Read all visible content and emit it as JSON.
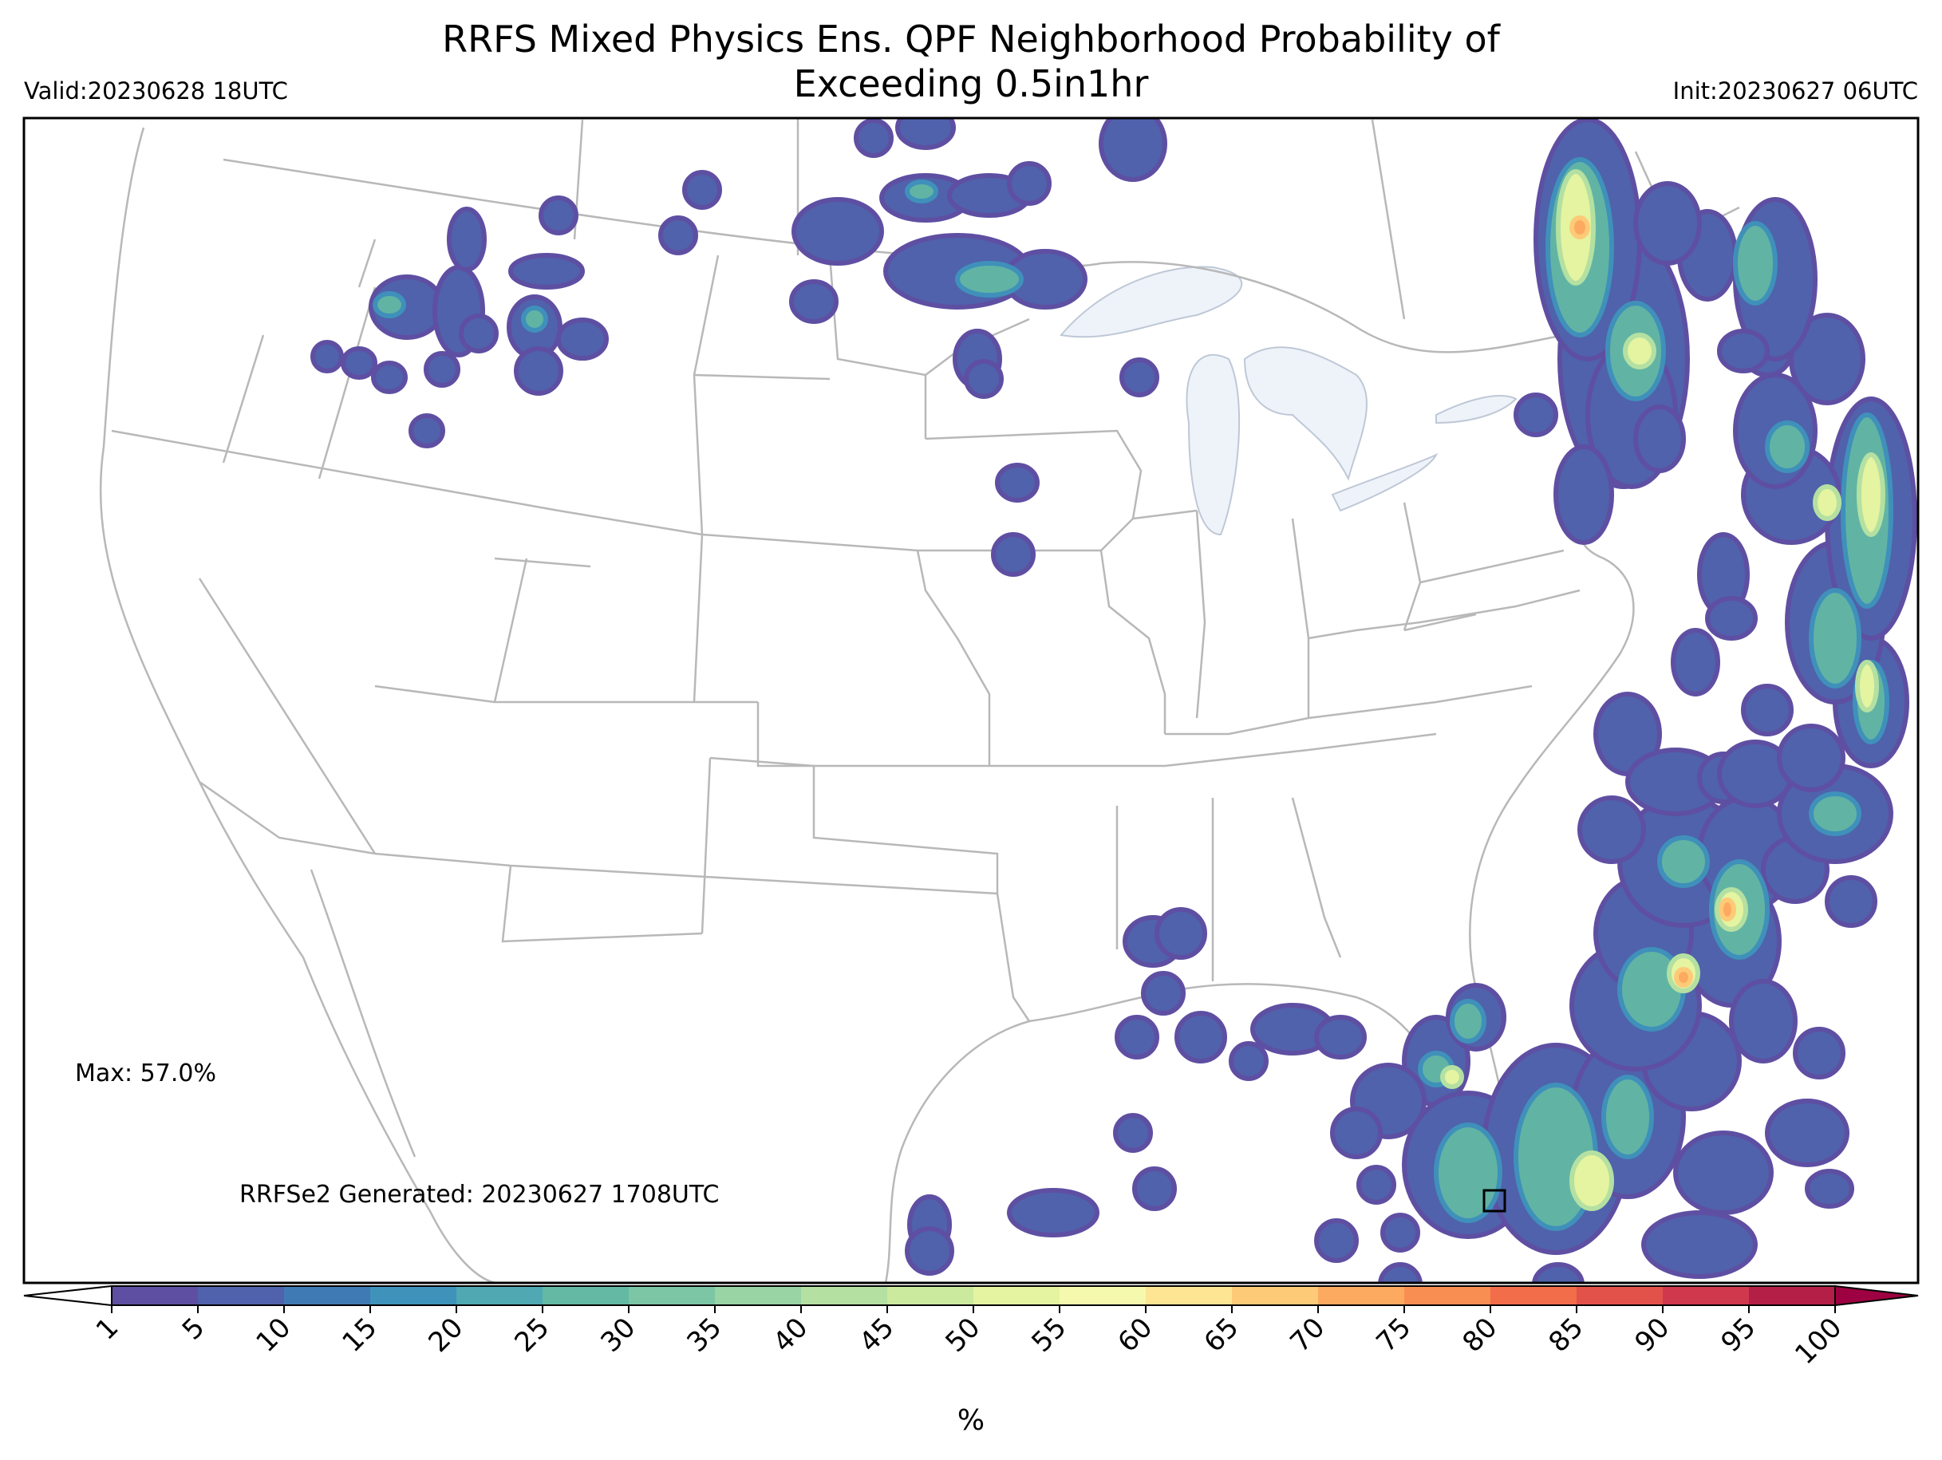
{
  "title": {
    "line1": "RRFS Mixed Physics Ens. QPF Neighborhood Probability of",
    "line2": "Exceeding 0.5in1hr"
  },
  "valid": "Valid:20230628 18UTC",
  "init": "Init:20230627 06UTC",
  "max_label": "Max: 57.0%",
  "generated_label": "RRFSe2 Generated: 20230627 1708UTC",
  "colorbar": {
    "unit": "%",
    "ticks": [
      "1",
      "5",
      "10",
      "15",
      "20",
      "25",
      "30",
      "35",
      "40",
      "45",
      "50",
      "55",
      "60",
      "65",
      "70",
      "75",
      "80",
      "85",
      "90",
      "95",
      "100"
    ],
    "colors": [
      "#5e4fa2",
      "#4f62ab",
      "#3f7ab4",
      "#3f93bb",
      "#4fa8b2",
      "#63b9a4",
      "#7cc6a5",
      "#98d4a4",
      "#b4e0a2",
      "#ccea9e",
      "#e4f4a0",
      "#f5f9ae",
      "#fde593",
      "#fdca78",
      "#fdaa61",
      "#f98e52",
      "#f26d4a",
      "#e2524b",
      "#cf384d",
      "#b41f47",
      "#9e0142"
    ],
    "extend": "both"
  },
  "map": {
    "projection": "Lambert Conformal CONUS",
    "lake_color": "#eef3fa",
    "border_color": "#b8b8b8",
    "marker": "square at max location (south Florida)"
  }
}
